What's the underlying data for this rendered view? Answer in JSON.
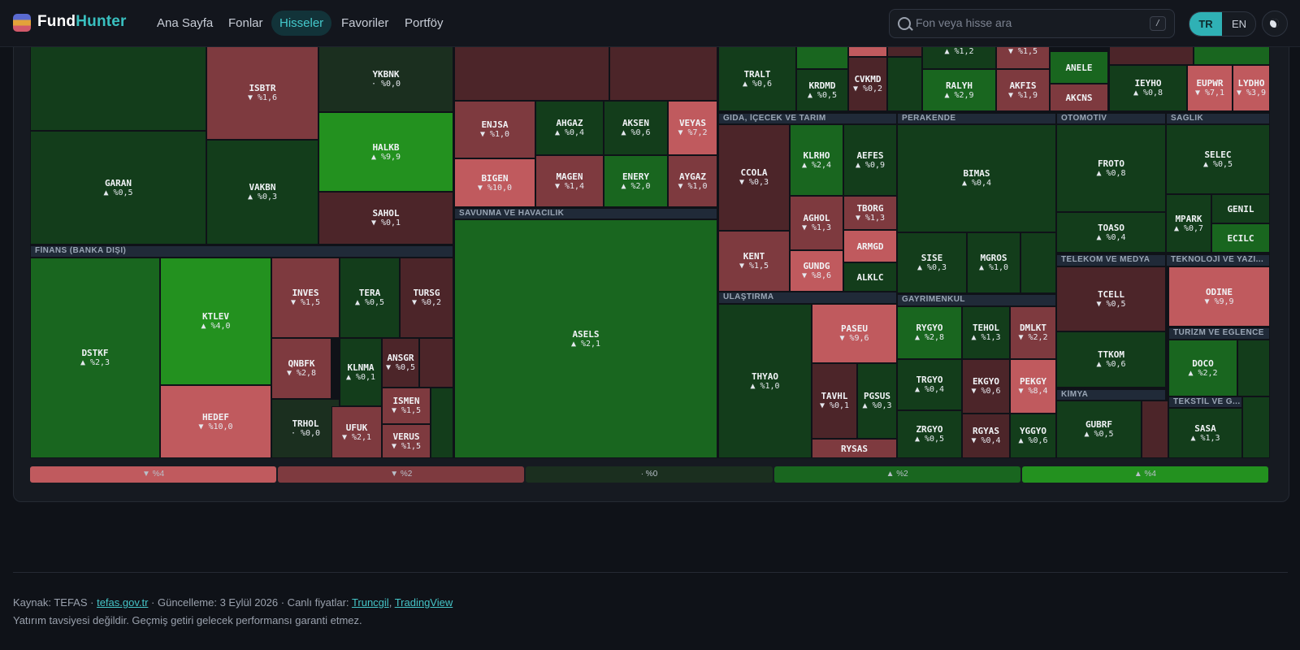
{
  "nav": {
    "brand_part1": "Fund",
    "brand_part2": "Hunter",
    "links": [
      "Ana Sayfa",
      "Fonlar",
      "Hisseler",
      "Favoriler",
      "Portföy"
    ],
    "active": "Hisseler",
    "search_placeholder": "Fon veya hisse ara",
    "search_shortcut": "/",
    "lang_tr": "TR",
    "lang_en": "EN",
    "theme_icon": "moon-icon"
  },
  "treemap": {
    "colors": {
      "dn_strong": "#c05a5e",
      "dn_mid": "#7e3a3f",
      "dn_weak": "#4c2529",
      "flat": "#1b2f1f",
      "up_weak": "#133d1b",
      "up_mid": "#19661f",
      "up_strong": "#23911f"
    },
    "sections": [
      "FİNANS (BANKA DIŞI)",
      "SAVUNMA VE HAVACILIK",
      "GIDA, İÇECEK VE TARIM",
      "PERAKENDE",
      "OTOMOTİV",
      "SAĞLIK",
      "ULAŞTIRMA",
      "GAYRİMENKUL",
      "TELEKOM VE MEDYA",
      "TEKNOLOJİ VE YAZI...",
      "TURİZM VE EĞLENCE",
      "KİMYA",
      "TEKSTİL VE G..."
    ],
    "tiles": [
      {
        "ticker": "ISBTR",
        "change": "▼ %1,6",
        "dir": "dn",
        "level": 1.6
      },
      {
        "ticker": "YKBNK",
        "change": "· %0,0",
        "dir": "flat",
        "level": 0
      },
      {
        "ticker": "GARAN",
        "change": "▲ %0,5",
        "dir": "up",
        "level": 0.5
      },
      {
        "ticker": "VAKBN",
        "change": "▲ %0,3",
        "dir": "up",
        "level": 0.3
      },
      {
        "ticker": "HALKB",
        "change": "▲ %9,9",
        "dir": "up",
        "level": 9.9
      },
      {
        "ticker": "SAHOL",
        "change": "▼ %0,1",
        "dir": "dn",
        "level": 0.1
      },
      {
        "ticker": "ENJSA",
        "change": "▼ %1,0",
        "dir": "dn",
        "level": 1.0
      },
      {
        "ticker": "AHGAZ",
        "change": "▲ %0,4",
        "dir": "up",
        "level": 0.4
      },
      {
        "ticker": "AKSEN",
        "change": "▲ %0,6",
        "dir": "up",
        "level": 0.6
      },
      {
        "ticker": "VEYAS",
        "change": "▼ %7,2",
        "dir": "dn",
        "level": 7.2
      },
      {
        "ticker": "BIGEN",
        "change": "▼ %10,0",
        "dir": "dn",
        "level": 10.0
      },
      {
        "ticker": "MAGEN",
        "change": "▼ %1,4",
        "dir": "dn",
        "level": 1.4
      },
      {
        "ticker": "ENERY",
        "change": "▲ %2,0",
        "dir": "up",
        "level": 2.0
      },
      {
        "ticker": "AYGAZ",
        "change": "▼ %1,0",
        "dir": "dn",
        "level": 1.0
      },
      {
        "ticker": "TRALT",
        "change": "▲ %0,6",
        "dir": "up",
        "level": 0.6
      },
      {
        "ticker": "KRDMD",
        "change": "▲ %0,5",
        "dir": "up",
        "level": 0.5
      },
      {
        "ticker": "CVKMD",
        "change": "▼ %0,2",
        "dir": "dn",
        "level": 0.2
      },
      {
        "ticker": "RALYH",
        "change": "▲ %2,9",
        "dir": "up",
        "level": 2.9
      },
      {
        "ticker": "AKFIS",
        "change": "▼ %1,9",
        "dir": "dn",
        "level": 1.9
      },
      {
        "ticker": "ANELE",
        "change": "",
        "dir": "up",
        "level": 1.5
      },
      {
        "ticker": "AKCNS",
        "change": "",
        "dir": "dn",
        "level": 1.5
      },
      {
        "ticker": "IEYHO",
        "change": "▲ %0,8",
        "dir": "up",
        "level": 0.8
      },
      {
        "ticker": "EUPWR",
        "change": "▼ %7,1",
        "dir": "dn",
        "level": 7.1
      },
      {
        "ticker": "LYDHO",
        "change": "▼ %3,9",
        "dir": "dn",
        "level": 3.9
      },
      {
        "ticker": "",
        "change": "▲ %1,2",
        "dir": "up",
        "level": 1.2
      },
      {
        "ticker": "",
        "change": "▼ %1,5",
        "dir": "dn",
        "level": 1.5
      },
      {
        "ticker": "DSTKF",
        "change": "▲ %2,3",
        "dir": "up",
        "level": 2.3
      },
      {
        "ticker": "KTLEV",
        "change": "▲ %4,0",
        "dir": "up",
        "level": 4.0
      },
      {
        "ticker": "HEDEF",
        "change": "▼ %10,0",
        "dir": "dn",
        "level": 10.0
      },
      {
        "ticker": "INVES",
        "change": "▼ %1,5",
        "dir": "dn",
        "level": 1.5
      },
      {
        "ticker": "TERA",
        "change": "▲ %0,5",
        "dir": "up",
        "level": 0.5
      },
      {
        "ticker": "TURSG",
        "change": "▼ %0,2",
        "dir": "dn",
        "level": 0.2
      },
      {
        "ticker": "QNBFK",
        "change": "▼ %2,8",
        "dir": "dn",
        "level": 2.8
      },
      {
        "ticker": "KLNMA",
        "change": "▲ %0,1",
        "dir": "up",
        "level": 0.1
      },
      {
        "ticker": "ANSGR",
        "change": "▼ %0,5",
        "dir": "dn",
        "level": 0.5
      },
      {
        "ticker": "ISMEN",
        "change": "▼ %1,5",
        "dir": "dn",
        "level": 1.5
      },
      {
        "ticker": "TRHOL",
        "change": "· %0,0",
        "dir": "flat",
        "level": 0
      },
      {
        "ticker": "UFUK",
        "change": "▼ %2,1",
        "dir": "dn",
        "level": 2.1
      },
      {
        "ticker": "VERUS",
        "change": "▼ %1,5",
        "dir": "dn",
        "level": 1.5
      },
      {
        "ticker": "ASELS",
        "change": "▲ %2,1",
        "dir": "up",
        "level": 2.1
      },
      {
        "ticker": "CCOLA",
        "change": "▼ %0,3",
        "dir": "dn",
        "level": 0.3
      },
      {
        "ticker": "KLRHO",
        "change": "▲ %2,4",
        "dir": "up",
        "level": 2.4
      },
      {
        "ticker": "AEFES",
        "change": "▲ %0,9",
        "dir": "up",
        "level": 0.9
      },
      {
        "ticker": "AGHOL",
        "change": "▼ %1,3",
        "dir": "dn",
        "level": 1.3
      },
      {
        "ticker": "TBORG",
        "change": "▼ %1,3",
        "dir": "dn",
        "level": 1.3
      },
      {
        "ticker": "ARMGD",
        "change": "",
        "dir": "dn",
        "level": 8
      },
      {
        "ticker": "KENT",
        "change": "▼ %1,5",
        "dir": "dn",
        "level": 1.5
      },
      {
        "ticker": "GUNDG",
        "change": "▼ %8,6",
        "dir": "dn",
        "level": 8.6
      },
      {
        "ticker": "ALKLC",
        "change": "",
        "dir": "up",
        "level": 0.3
      },
      {
        "ticker": "BIMAS",
        "change": "▲ %0,4",
        "dir": "up",
        "level": 0.4
      },
      {
        "ticker": "SISE",
        "change": "▲ %0,3",
        "dir": "up",
        "level": 0.3
      },
      {
        "ticker": "MGROS",
        "change": "▲ %1,0",
        "dir": "up",
        "level": 1.0
      },
      {
        "ticker": "FROTO",
        "change": "▲ %0,8",
        "dir": "up",
        "level": 0.8
      },
      {
        "ticker": "TOASO",
        "change": "▲ %0,4",
        "dir": "up",
        "level": 0.4
      },
      {
        "ticker": "SELEC",
        "change": "▲ %0,5",
        "dir": "up",
        "level": 0.5
      },
      {
        "ticker": "MPARK",
        "change": "▲ %0,7",
        "dir": "up",
        "level": 0.7
      },
      {
        "ticker": "GENIL",
        "change": "",
        "dir": "up",
        "level": 1.0
      },
      {
        "ticker": "ECILC",
        "change": "",
        "dir": "up",
        "level": 1.5
      },
      {
        "ticker": "THYAO",
        "change": "▲ %1,0",
        "dir": "up",
        "level": 1.0
      },
      {
        "ticker": "PASEU",
        "change": "▼ %9,6",
        "dir": "dn",
        "level": 9.6
      },
      {
        "ticker": "TAVHL",
        "change": "▼ %0,1",
        "dir": "dn",
        "level": 0.1
      },
      {
        "ticker": "PGSUS",
        "change": "▲ %0,3",
        "dir": "up",
        "level": 0.3
      },
      {
        "ticker": "RYSAS",
        "change": "",
        "dir": "dn",
        "level": 1.0
      },
      {
        "ticker": "RYGYO",
        "change": "▲ %2,8",
        "dir": "up",
        "level": 2.8
      },
      {
        "ticker": "TEHOL",
        "change": "▲ %1,3",
        "dir": "up",
        "level": 1.3
      },
      {
        "ticker": "DMLKT",
        "change": "▼ %2,2",
        "dir": "dn",
        "level": 2.2
      },
      {
        "ticker": "TRGYO",
        "change": "▲ %0,4",
        "dir": "up",
        "level": 0.4
      },
      {
        "ticker": "EKGYO",
        "change": "▼ %0,6",
        "dir": "dn",
        "level": 0.6
      },
      {
        "ticker": "PEKGY",
        "change": "▼ %8,4",
        "dir": "dn",
        "level": 8.4
      },
      {
        "ticker": "ZRGYO",
        "change": "▲ %0,5",
        "dir": "up",
        "level": 0.5
      },
      {
        "ticker": "RGYAS",
        "change": "▼ %0,4",
        "dir": "dn",
        "level": 0.4
      },
      {
        "ticker": "YGGYO",
        "change": "▲ %0,6",
        "dir": "up",
        "level": 0.6
      },
      {
        "ticker": "TCELL",
        "change": "▼ %0,5",
        "dir": "dn",
        "level": 0.5
      },
      {
        "ticker": "TTKOM",
        "change": "▲ %0,6",
        "dir": "up",
        "level": 0.6
      },
      {
        "ticker": "ODINE",
        "change": "▼ %9,9",
        "dir": "dn",
        "level": 9.9
      },
      {
        "ticker": "DOCO",
        "change": "▲ %2,2",
        "dir": "up",
        "level": 2.2
      },
      {
        "ticker": "GUBRF",
        "change": "▲ %0,5",
        "dir": "up",
        "level": 0.5
      },
      {
        "ticker": "SASA",
        "change": "▲ %1,3",
        "dir": "up",
        "level": 1.3
      }
    ],
    "legend": [
      "▼ %4",
      "▼ %2",
      "· %0",
      "▲ %2",
      "▲ %4"
    ]
  },
  "footer": {
    "source_label": "Kaynak: TEFAS · ",
    "source_link": "tefas.gov.tr",
    "update_text": " · Güncelleme: 3 Eylül 2026 · Canlı fiyatlar: ",
    "link_truncgil": "Truncgil",
    "sep": ", ",
    "link_tradingview": "TradingView",
    "disclaimer": "Yatırım tavsiyesi değildir. Geçmiş getiri gelecek performansı garanti etmez."
  }
}
